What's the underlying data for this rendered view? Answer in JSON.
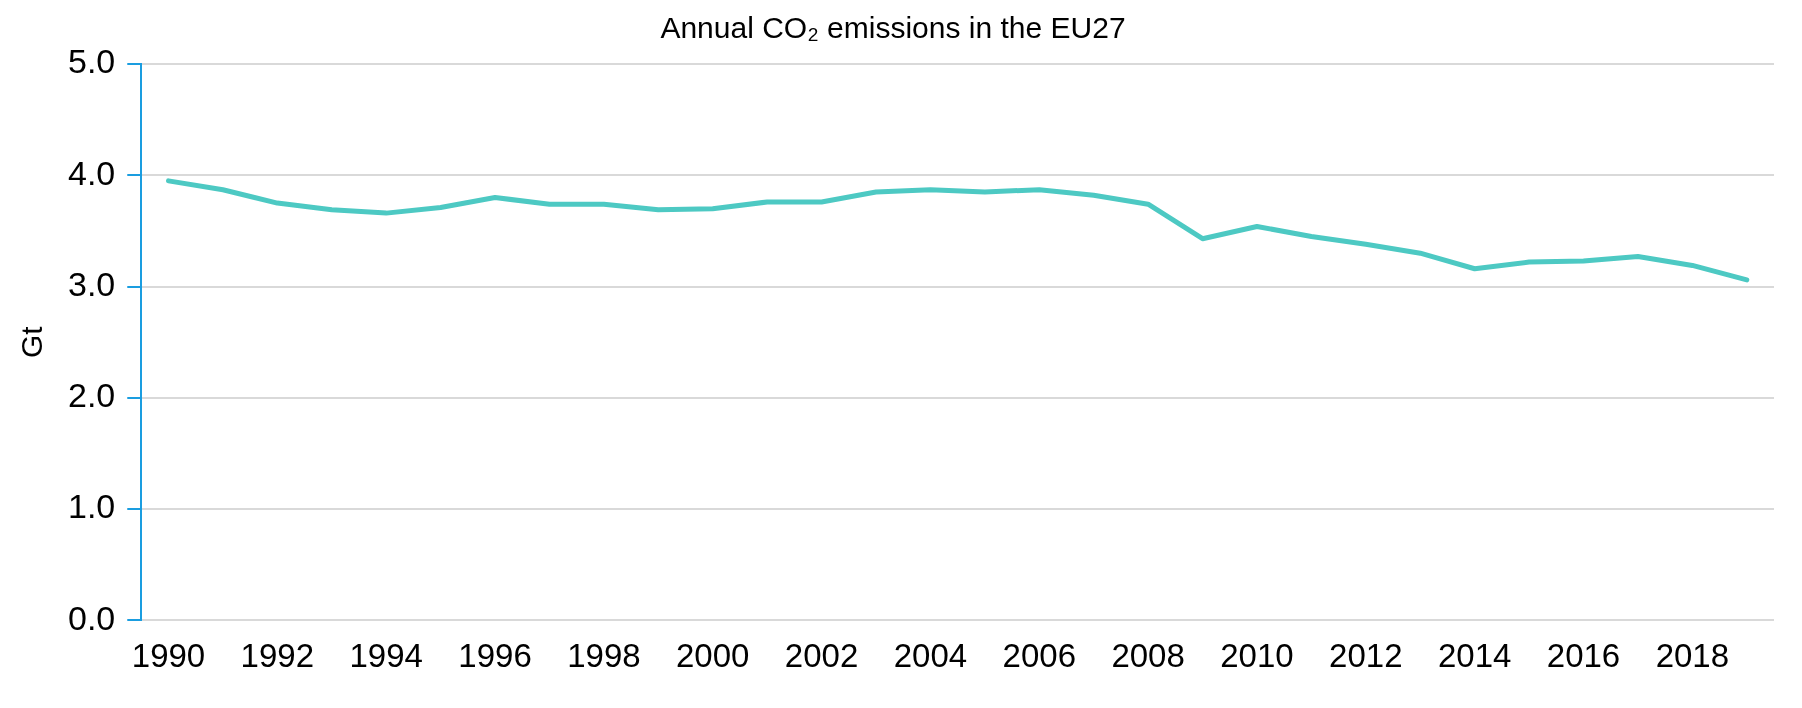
{
  "chart_data": {
    "type": "line",
    "title": "Annual CO₂ emissions in the EU27",
    "ylabel": "Gt",
    "categories": [
      "1990",
      null,
      "1992",
      null,
      "1994",
      null,
      "1996",
      null,
      "1998",
      null,
      "2000",
      null,
      "2002",
      null,
      "2004",
      null,
      "2006",
      null,
      "2008",
      null,
      "2010",
      null,
      "2012",
      null,
      "2014",
      null,
      "2016",
      null,
      "2018",
      null
    ],
    "series": [
      {
        "color": "#4dc9c3",
        "values": [
          3.95,
          3.87,
          3.75,
          3.69,
          3.66,
          3.71,
          3.8,
          3.74,
          3.74,
          3.69,
          3.7,
          3.76,
          3.76,
          3.85,
          3.87,
          3.85,
          3.87,
          3.82,
          3.74,
          3.43,
          3.54,
          3.45,
          3.38,
          3.3,
          3.16,
          3.22,
          3.23,
          3.27,
          3.19,
          3.06
        ]
      }
    ],
    "ylim": [
      0,
      5
    ],
    "yticks": [
      {
        "value": 0,
        "label": "0.0"
      },
      {
        "value": 1,
        "label": "1.0"
      },
      {
        "value": 2,
        "label": "2.0"
      },
      {
        "value": 3,
        "label": "3.0"
      },
      {
        "value": 4,
        "label": "4.0"
      },
      {
        "value": 5,
        "label": "5.0"
      }
    ],
    "grid": "y",
    "legend": false,
    "marker": "none",
    "line_style": "solid"
  }
}
